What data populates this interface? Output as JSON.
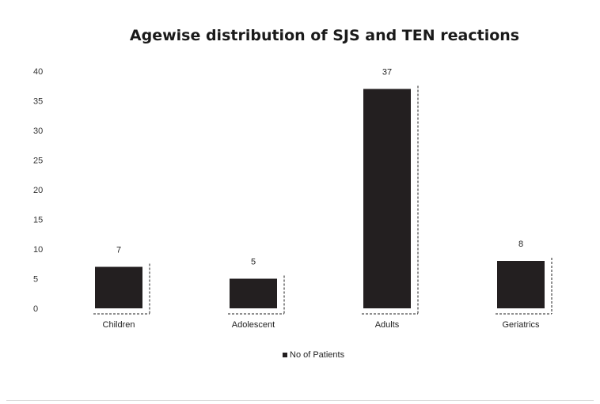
{
  "chart_data": {
    "type": "bar",
    "title": "Agewise distribution of SJS and TEN reactions",
    "xlabel": "",
    "ylabel": "",
    "categories": [
      "Children",
      "Adolescent",
      "Adults",
      "Geriatrics"
    ],
    "series": [
      {
        "name": "No of Patients",
        "values": [
          7,
          5,
          37,
          8
        ]
      }
    ],
    "data_labels": [
      "7",
      "5",
      "37",
      "8"
    ],
    "yticks": [
      "0",
      "5",
      "10",
      "15",
      "20",
      "25",
      "30",
      "35",
      "40"
    ],
    "ylim": [
      0,
      40
    ],
    "grid": false,
    "legend": "bottom",
    "colors": {
      "bar": "#231f20",
      "text": "#222222"
    }
  }
}
